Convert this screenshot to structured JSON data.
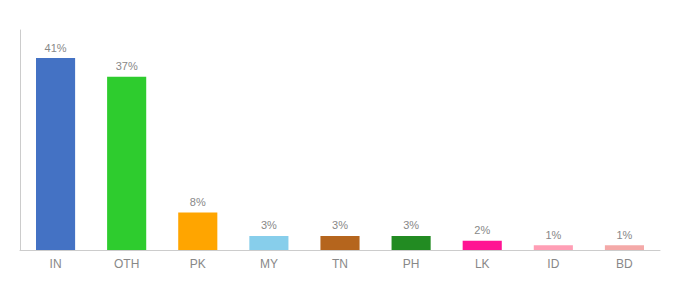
{
  "chart_data": {
    "type": "bar",
    "categories": [
      "IN",
      "OTH",
      "PK",
      "MY",
      "TN",
      "PH",
      "LK",
      "ID",
      "BD"
    ],
    "values": [
      41,
      37,
      8,
      3,
      3,
      3,
      2,
      1,
      1
    ],
    "value_labels": [
      "41%",
      "37%",
      "8%",
      "3%",
      "3%",
      "3%",
      "2%",
      "1%",
      "1%"
    ],
    "colors": [
      "#4472c4",
      "#2ecc2e",
      "#ffa500",
      "#87ceeb",
      "#b5651d",
      "#228b22",
      "#ff1493",
      "#ff9eb5",
      "#f4a9a8"
    ],
    "ylim": [
      0,
      47
    ],
    "data_labels": true,
    "tick_labels": "x",
    "grid": false
  }
}
